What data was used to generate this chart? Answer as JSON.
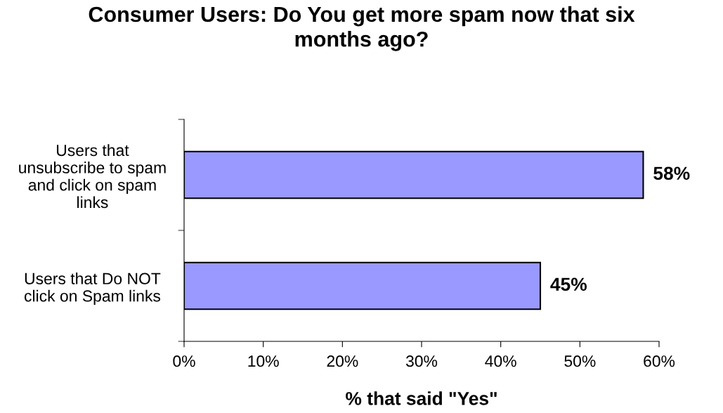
{
  "chart_data": {
    "type": "bar",
    "orientation": "horizontal",
    "title": "Consumer Users: Do You get more spam now that six months ago?",
    "xlabel": "% that said \"Yes\"",
    "categories": [
      "Users that unsubscribe to spam and click on spam links",
      "Users that Do NOT click on Spam links"
    ],
    "values": [
      58,
      45
    ],
    "value_labels": [
      "58%",
      "45%"
    ],
    "color": "#9999ff",
    "xlim": [
      0,
      60
    ],
    "xticks": [
      {
        "value": 0,
        "label": "0%"
      },
      {
        "value": 10,
        "label": "10%"
      },
      {
        "value": 20,
        "label": "20%"
      },
      {
        "value": 30,
        "label": "30%"
      },
      {
        "value": 40,
        "label": "40%"
      },
      {
        "value": 50,
        "label": "50%"
      },
      {
        "value": 60,
        "label": "60%"
      }
    ],
    "grid": false
  }
}
